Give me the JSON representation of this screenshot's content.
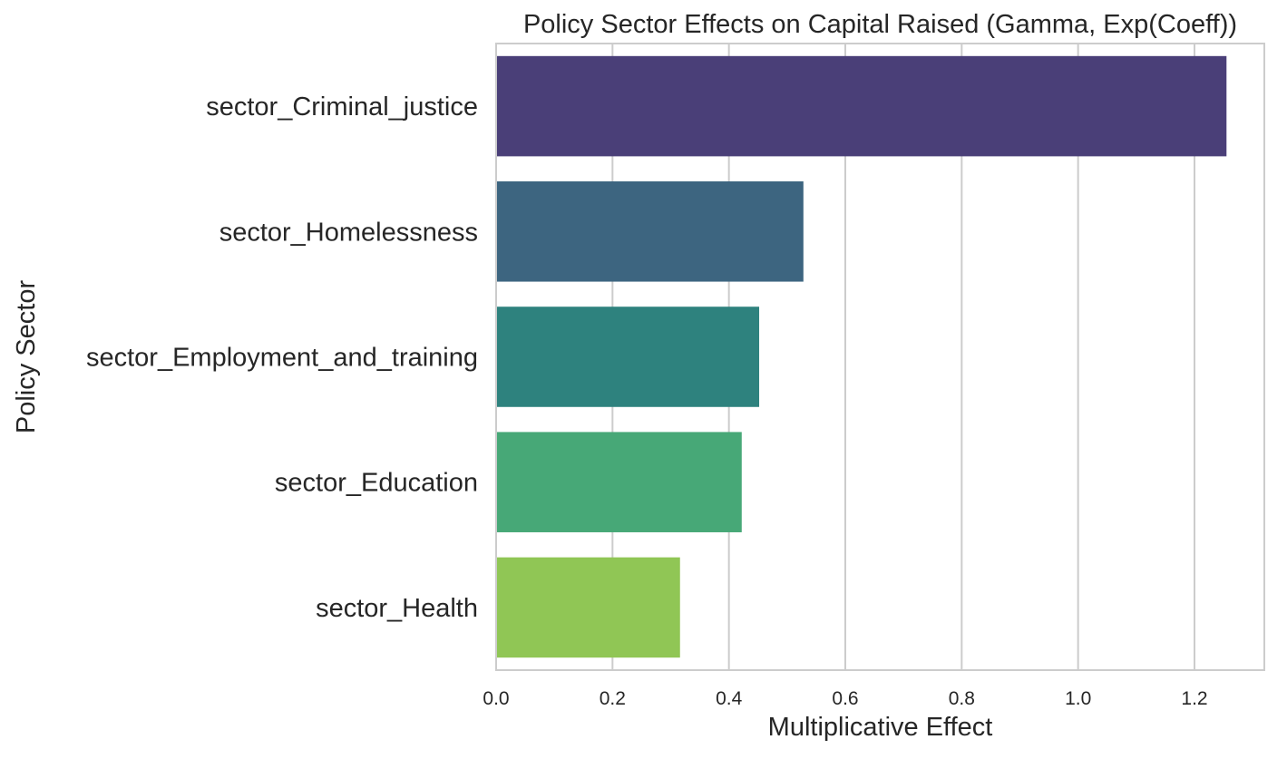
{
  "chart_data": {
    "type": "bar",
    "orientation": "horizontal",
    "title": "Policy Sector Effects on Capital Raised (Gamma, Exp(Coeff))",
    "xlabel": "Multiplicative Effect",
    "ylabel": "Policy Sector",
    "categories": [
      "sector_Criminal_justice",
      "sector_Homelessness",
      "sector_Employment_and_training",
      "sector_Education",
      "sector_Health"
    ],
    "values": [
      1.255,
      0.528,
      0.452,
      0.422,
      0.316
    ],
    "colors": [
      "#4a3f78",
      "#3d6580",
      "#2e827e",
      "#47a877",
      "#90c655"
    ],
    "xlim": [
      0,
      1.32
    ],
    "xticks": [
      "0.0",
      "0.2",
      "0.4",
      "0.6",
      "0.8",
      "1.0",
      "1.2"
    ],
    "xtick_values": [
      0,
      0.2,
      0.4,
      0.6,
      0.8,
      1.0,
      1.2
    ],
    "grid": "vertical",
    "legend": "none"
  }
}
